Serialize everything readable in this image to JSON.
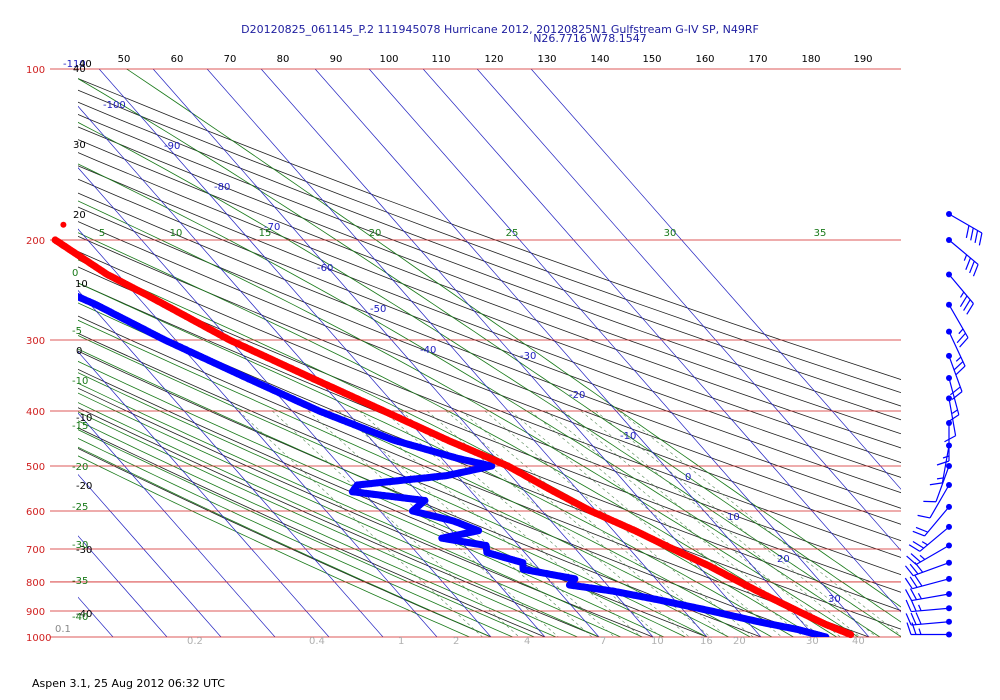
{
  "header": {
    "line1": "D20120825_061145_P.2 111945078 Hurricane 2012, 20120825N1 Gulfstream G-IV SP, N49RF",
    "line2": "N26.7716 W78.1547"
  },
  "footer": "Aspen 3.1, 25 Aug 2012  06:32 UTC",
  "colors": {
    "isobar": "#d02020",
    "isotherm": "#2020c0",
    "dry_adiabat": "#202020",
    "moist_adiabat": "#1a7a1a",
    "mixing_ratio": "#5a8a5a",
    "temperature_trace": "#ff0000",
    "dewpoint_trace": "#0000ff",
    "wind_barb": "#0000ff"
  },
  "chart_data": {
    "type": "skew-t",
    "pressure_levels_hPa": [
      "100",
      "200",
      "300",
      "400",
      "500",
      "600",
      "700",
      "800",
      "900",
      "1000"
    ],
    "top_axis_labels": [
      "-110",
      "40",
      "50",
      "60",
      "70",
      "80",
      "90",
      "100",
      "110",
      "120",
      "130",
      "140",
      "150",
      "160",
      "170",
      "180",
      "190"
    ],
    "dry_adiabat_labels": [
      "40",
      "30",
      "20",
      "10",
      "0",
      "-10",
      "-20",
      "-30",
      "-40"
    ],
    "moist_adiabat_labels": [
      "5",
      "10",
      "15",
      "20",
      "25",
      "30",
      "35"
    ],
    "moist_left_labels": [
      "0",
      "-5",
      "-10",
      "-15",
      "-20",
      "-25",
      "-30",
      "-35",
      "-40"
    ],
    "isotherm_labels": [
      "-100",
      "-90",
      "-80",
      "-70",
      "-60",
      "-50",
      "-40",
      "-30",
      "-20",
      "-10",
      "0",
      "10",
      "20",
      "30"
    ],
    "mixing_ratio_labels": [
      "0.1",
      "0.2",
      "0.4",
      "1",
      "2",
      "4",
      "7",
      "10",
      "16",
      "20",
      "30",
      "40"
    ],
    "temperature_profile": [
      {
        "p": 200,
        "t": -56
      },
      {
        "p": 230,
        "t": -52
      },
      {
        "p": 250,
        "t": -48
      },
      {
        "p": 300,
        "t": -40
      },
      {
        "p": 350,
        "t": -31
      },
      {
        "p": 400,
        "t": -23
      },
      {
        "p": 450,
        "t": -16
      },
      {
        "p": 500,
        "t": -9
      },
      {
        "p": 550,
        "t": -5
      },
      {
        "p": 600,
        "t": -1
      },
      {
        "p": 650,
        "t": 4
      },
      {
        "p": 700,
        "t": 8
      },
      {
        "p": 750,
        "t": 12
      },
      {
        "p": 800,
        "t": 15
      },
      {
        "p": 850,
        "t": 18
      },
      {
        "p": 900,
        "t": 21
      },
      {
        "p": 950,
        "t": 24
      },
      {
        "p": 990,
        "t": 27
      }
    ],
    "temperature_isolated_point": {
      "p": 188,
      "t": -52
    },
    "dewpoint_profile": [
      {
        "p": 230,
        "t": -69
      },
      {
        "p": 240,
        "t": -64
      },
      {
        "p": 260,
        "t": -59
      },
      {
        "p": 300,
        "t": -52
      },
      {
        "p": 350,
        "t": -43
      },
      {
        "p": 400,
        "t": -35
      },
      {
        "p": 450,
        "t": -26
      },
      {
        "p": 485,
        "t": -17
      },
      {
        "p": 500,
        "t": -12
      },
      {
        "p": 520,
        "t": -22
      },
      {
        "p": 540,
        "t": -40
      },
      {
        "p": 555,
        "t": -42
      },
      {
        "p": 575,
        "t": -30
      },
      {
        "p": 600,
        "t": -34
      },
      {
        "p": 625,
        "t": -28
      },
      {
        "p": 650,
        "t": -25
      },
      {
        "p": 670,
        "t": -33
      },
      {
        "p": 690,
        "t": -26
      },
      {
        "p": 710,
        "t": -27
      },
      {
        "p": 740,
        "t": -22
      },
      {
        "p": 760,
        "t": -23
      },
      {
        "p": 790,
        "t": -15
      },
      {
        "p": 810,
        "t": -17
      },
      {
        "p": 830,
        "t": -10
      },
      {
        "p": 860,
        "t": -3
      },
      {
        "p": 900,
        "t": 5
      },
      {
        "p": 940,
        "t": 12
      },
      {
        "p": 970,
        "t": 18
      },
      {
        "p": 1000,
        "t": 22
      }
    ],
    "wind_profile": [
      {
        "p": 180,
        "dir": 300,
        "spd": 40
      },
      {
        "p": 200,
        "dir": 310,
        "spd": 35
      },
      {
        "p": 230,
        "dir": 320,
        "spd": 35
      },
      {
        "p": 260,
        "dir": 330,
        "spd": 25
      },
      {
        "p": 290,
        "dir": 335,
        "spd": 25
      },
      {
        "p": 320,
        "dir": 340,
        "spd": 20
      },
      {
        "p": 350,
        "dir": 345,
        "spd": 15
      },
      {
        "p": 380,
        "dir": 350,
        "spd": 10
      },
      {
        "p": 420,
        "dir": 360,
        "spd": 15
      },
      {
        "p": 460,
        "dir": 10,
        "spd": 15
      },
      {
        "p": 500,
        "dir": 20,
        "spd": 10
      },
      {
        "p": 540,
        "dir": 30,
        "spd": 10
      },
      {
        "p": 590,
        "dir": 40,
        "spd": 20
      },
      {
        "p": 640,
        "dir": 50,
        "spd": 25
      },
      {
        "p": 690,
        "dir": 60,
        "spd": 25
      },
      {
        "p": 740,
        "dir": 70,
        "spd": 30
      },
      {
        "p": 790,
        "dir": 75,
        "spd": 30
      },
      {
        "p": 840,
        "dir": 80,
        "spd": 25
      },
      {
        "p": 890,
        "dir": 85,
        "spd": 25
      },
      {
        "p": 940,
        "dir": 85,
        "spd": 30
      },
      {
        "p": 990,
        "dir": 90,
        "spd": 25
      }
    ]
  }
}
